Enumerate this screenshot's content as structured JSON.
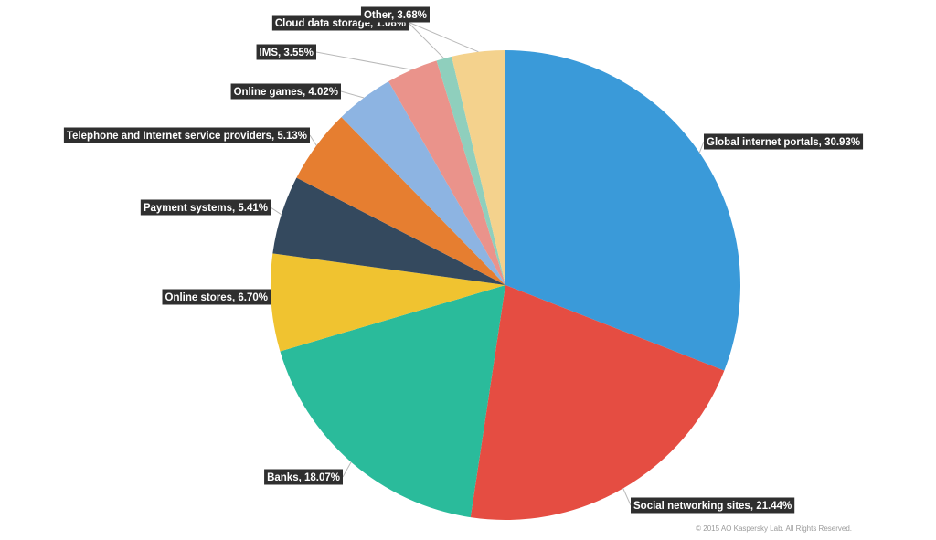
{
  "chart_data": {
    "type": "pie",
    "start": "12 o'clock",
    "direction": "clockwise",
    "slices": [
      {
        "name": "Global internet portals",
        "value": 30.93,
        "label": "Global internet portals, 30.93%",
        "color": "#3a9ad9"
      },
      {
        "name": "Social networking sites",
        "value": 21.44,
        "label": "Social networking sites, 21.44%",
        "color": "#e54d42"
      },
      {
        "name": "Banks",
        "value": 18.07,
        "label": "Banks, 18.07%",
        "color": "#2abb9b"
      },
      {
        "name": "Online stores",
        "value": 6.7,
        "label": "Online stores, 6.70%",
        "color": "#f0c330"
      },
      {
        "name": "Payment systems",
        "value": 5.41,
        "label": "Payment systems, 5.41%",
        "color": "#34495e"
      },
      {
        "name": "Telephone and Internet service providers",
        "value": 5.13,
        "label": "Telephone and Internet service providers, 5.13%",
        "color": "#e67e30"
      },
      {
        "name": "Online games",
        "value": 4.02,
        "label": "Online games, 4.02%",
        "color": "#8db4e2"
      },
      {
        "name": "IMS",
        "value": 3.55,
        "label": "IMS, 3.55%",
        "color": "#ea938b"
      },
      {
        "name": "Cloud data storage",
        "value": 1.06,
        "label": "Cloud data storage, 1.06%",
        "color": "#8fcfbd"
      },
      {
        "name": "Other",
        "value": 3.68,
        "label": "Other, 3.68%",
        "color": "#f4d28d"
      }
    ]
  },
  "copyright": "© 2015 AO Kaspersky Lab. All Rights Reserved."
}
